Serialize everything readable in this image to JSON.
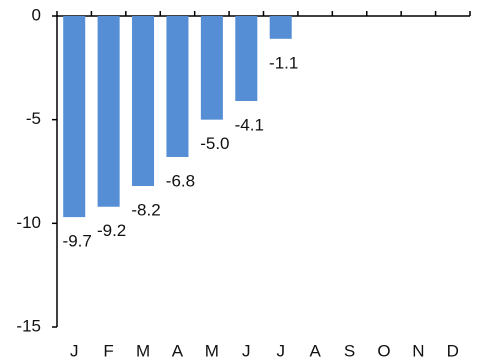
{
  "chart_data": {
    "type": "bar",
    "categories": [
      "J",
      "F",
      "M",
      "A",
      "M",
      "J",
      "J",
      "A",
      "S",
      "O",
      "N",
      "D"
    ],
    "values": [
      -9.7,
      -9.2,
      -8.2,
      -6.8,
      -5.0,
      -4.1,
      -1.1,
      null,
      null,
      null,
      null,
      null
    ],
    "value_labels": [
      "-9.7",
      "-9.2",
      "-8.2",
      "-6.8",
      "-5.0",
      "-4.1",
      "-1.1",
      null,
      null,
      null,
      null,
      null
    ],
    "color": "#558ed5",
    "ylim": [
      -15,
      0
    ],
    "yticks": [
      0,
      -5,
      -10,
      -15
    ],
    "grid": false
  }
}
